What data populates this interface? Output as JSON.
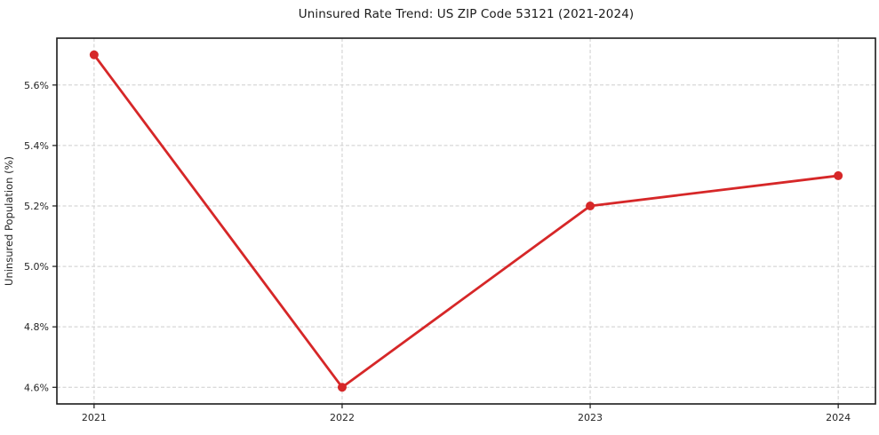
{
  "title": "Uninsured Rate Trend: US ZIP Code 53121 (2021-2024)",
  "chart_data": {
    "type": "line",
    "title": "Uninsured Rate Trend: US ZIP Code 53121 (2021-2024)",
    "xlabel": "",
    "ylabel": "Uninsured Population (%)",
    "x": [
      2021,
      2022,
      2023,
      2024
    ],
    "x_tick_labels": [
      "2021",
      "2022",
      "2023",
      "2024"
    ],
    "series": [
      {
        "name": "Uninsured rate",
        "values": [
          5.7,
          4.6,
          5.2,
          5.3
        ]
      }
    ],
    "y_ticks": [
      4.6,
      4.8,
      5.0,
      5.2,
      5.4,
      5.6
    ],
    "y_tick_labels": [
      "4.6%",
      "4.8%",
      "5.0%",
      "5.2%",
      "5.4%",
      "5.6%"
    ],
    "xlim": [
      2020.85,
      2024.15
    ],
    "ylim": [
      4.545,
      5.755
    ],
    "grid": true,
    "legend_position": "none",
    "line_color": "#d62728",
    "marker": "circle",
    "grid_color": "#cecece",
    "axis_color": "#1a1a1a",
    "tick_label_color": "#262626"
  }
}
